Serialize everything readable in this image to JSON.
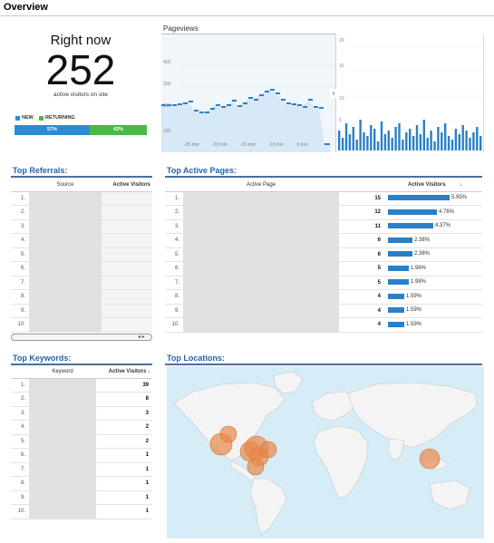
{
  "overview": {
    "title": "Overview"
  },
  "right_now": {
    "label": "Right now",
    "count": "252",
    "subtitle": "active visitors on site",
    "legend_new": "NEW",
    "legend_returning": "RETURNING",
    "new_pct": "57%",
    "returning_pct": "43%",
    "colors": {
      "new": "#2a8dd4",
      "returning": "#48b948"
    }
  },
  "pageviews": {
    "label": "Pageviews",
    "left_ticks": [
      "400",
      "300",
      "200",
      "100"
    ],
    "right_ticks": [
      "20",
      "15",
      "10",
      "5"
    ],
    "x_ticks": [
      "-25 min",
      "-20 min",
      "-15 min",
      "-10 min",
      "-5 min"
    ],
    "toggle_icon": "chevron-right-icon"
  },
  "top_referrals": {
    "title": "Top Referrals:",
    "col_source": "Source",
    "col_active": "Active Visitors",
    "rows": [
      "1.",
      "2.",
      "3.",
      "4.",
      "5.",
      "6.",
      "7.",
      "8.",
      "9.",
      "10."
    ]
  },
  "top_pages": {
    "title": "Top Active Pages:",
    "col_page": "Active Page",
    "col_active": "Active Visitors",
    "sort_icon": "arrow-down-icon",
    "rows": [
      {
        "idx": "1.",
        "visitors": "15",
        "pct": "5.95%",
        "share": 5.95
      },
      {
        "idx": "2.",
        "visitors": "12",
        "pct": "4.76%",
        "share": 4.76
      },
      {
        "idx": "3.",
        "visitors": "11",
        "pct": "4.37%",
        "share": 4.37
      },
      {
        "idx": "4.",
        "visitors": "6",
        "pct": "2.38%",
        "share": 2.38
      },
      {
        "idx": "5.",
        "visitors": "6",
        "pct": "2.38%",
        "share": 2.38
      },
      {
        "idx": "6.",
        "visitors": "5",
        "pct": "1.98%",
        "share": 1.98
      },
      {
        "idx": "7.",
        "visitors": "5",
        "pct": "1.98%",
        "share": 1.98
      },
      {
        "idx": "8.",
        "visitors": "4",
        "pct": "1.59%",
        "share": 1.59
      },
      {
        "idx": "9.",
        "visitors": "4",
        "pct": "1.59%",
        "share": 1.59
      },
      {
        "idx": "10.",
        "visitors": "4",
        "pct": "1.59%",
        "share": 1.59
      }
    ]
  },
  "top_keywords": {
    "title": "Top Keywords:",
    "col_keyword": "Keyword",
    "col_active": "Active Visitors",
    "rows": [
      {
        "idx": "1.",
        "visitors": "39"
      },
      {
        "idx": "2.",
        "visitors": "8"
      },
      {
        "idx": "3.",
        "visitors": "3"
      },
      {
        "idx": "4.",
        "visitors": "2"
      },
      {
        "idx": "5.",
        "visitors": "2"
      },
      {
        "idx": "6.",
        "visitors": "1"
      },
      {
        "idx": "7.",
        "visitors": "1"
      },
      {
        "idx": "8.",
        "visitors": "1"
      },
      {
        "idx": "9.",
        "visitors": "1"
      },
      {
        "idx": "10.",
        "visitors": "1"
      }
    ]
  },
  "top_locations": {
    "title": "Top Locations:",
    "bubble_color": "#e8894a"
  }
}
